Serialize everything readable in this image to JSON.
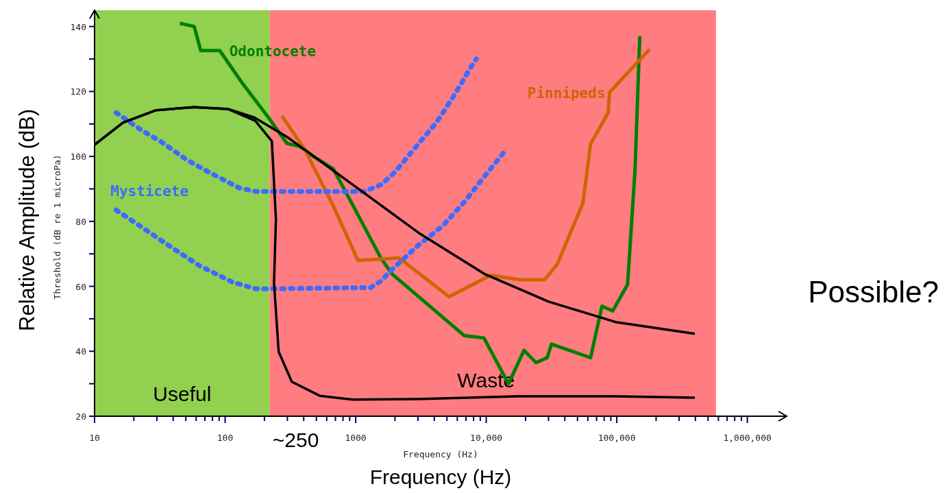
{
  "chart_data": {
    "type": "line",
    "xlabel": "Frequency (Hz)",
    "ylabel": "Threshold (dB re 1 microPa)",
    "log": "x",
    "xlim": [
      10,
      2000000
    ],
    "ylim": [
      20,
      145
    ],
    "xticks": [
      {
        "value": 10,
        "label": "10"
      },
      {
        "value": 20,
        "label": null
      },
      {
        "value": 30,
        "label": null
      },
      {
        "value": 40,
        "label": null
      },
      {
        "value": 50,
        "label": null
      },
      {
        "value": 60,
        "label": null
      },
      {
        "value": 70,
        "label": null
      },
      {
        "value": 80,
        "label": null
      },
      {
        "value": 90,
        "label": null
      },
      {
        "value": 100,
        "label": "100"
      },
      {
        "value": 200,
        "label": null
      },
      {
        "value": 300,
        "label": null
      },
      {
        "value": 400,
        "label": null
      },
      {
        "value": 500,
        "label": null
      },
      {
        "value": 600,
        "label": null
      },
      {
        "value": 700,
        "label": null
      },
      {
        "value": 800,
        "label": null
      },
      {
        "value": 900,
        "label": null
      },
      {
        "value": 1000,
        "label": "1000"
      },
      {
        "value": 2000,
        "label": null
      },
      {
        "value": 3000,
        "label": null
      },
      {
        "value": 4000,
        "label": null
      },
      {
        "value": 5000,
        "label": null
      },
      {
        "value": 6000,
        "label": null
      },
      {
        "value": 7000,
        "label": null
      },
      {
        "value": 8000,
        "label": null
      },
      {
        "value": 9000,
        "label": null
      },
      {
        "value": 10000,
        "label": "10,000"
      },
      {
        "value": 20000,
        "label": null
      },
      {
        "value": 30000,
        "label": null
      },
      {
        "value": 40000,
        "label": null
      },
      {
        "value": 50000,
        "label": null
      },
      {
        "value": 60000,
        "label": null
      },
      {
        "value": 70000,
        "label": null
      },
      {
        "value": 80000,
        "label": null
      },
      {
        "value": 90000,
        "label": null
      },
      {
        "value": 100000,
        "label": "100,000"
      },
      {
        "value": 200000,
        "label": null
      },
      {
        "value": 300000,
        "label": null
      },
      {
        "value": 400000,
        "label": null
      },
      {
        "value": 500000,
        "label": null
      },
      {
        "value": 600000,
        "label": null
      },
      {
        "value": 700000,
        "label": null
      },
      {
        "value": 800000,
        "label": null
      },
      {
        "value": 900000,
        "label": null
      },
      {
        "value": 1000000,
        "label": "1,000,000"
      }
    ],
    "yticks": [
      20,
      {
        "value": 30,
        "label": null
      },
      40,
      {
        "value": 50,
        "label": null
      },
      60,
      {
        "value": 70,
        "label": null
      },
      80,
      {
        "value": 90,
        "label": null
      },
      100,
      {
        "value": 110,
        "label": null
      },
      120,
      {
        "value": 130,
        "label": null
      },
      140
    ],
    "bands": [
      {
        "axis": "x",
        "from": 10,
        "to": 220,
        "label": "Useful",
        "color": "#92d050"
      },
      {
        "axis": "x",
        "from": 220,
        "to": 575000,
        "label": "Waste",
        "color": "#ff7c80"
      }
    ],
    "series": [
      {
        "name": "Odontocete",
        "color": "#008000",
        "line_style": "solid",
        "x": [
          45,
          58,
          65,
          91,
          133,
          210,
          298,
          376,
          475,
          673,
          950,
          1560,
          1900,
          6800,
          9600,
          14800,
          19500,
          24000,
          29300,
          31600,
          63000,
          77000,
          93000,
          121000,
          138000,
          150000
        ],
        "values": [
          141,
          140,
          132.6,
          132.6,
          123,
          112.5,
          104,
          103,
          100,
          96.2,
          85,
          68.7,
          63.8,
          44.8,
          44.1,
          30,
          40.3,
          36.5,
          38,
          42.2,
          38,
          53.9,
          52.4,
          60.6,
          96,
          137
        ]
      },
      {
        "name": "Pinnipeds",
        "color": "#cc6600",
        "line_style": "solid",
        "x": [
          272,
          410,
          670,
          1040,
          2150,
          5200,
          10800,
          18200,
          27900,
          35000,
          55000,
          63000,
          86000,
          88000,
          178000
        ],
        "values": [
          112.5,
          101.9,
          85,
          68,
          68.7,
          56.8,
          63.4,
          62,
          62,
          66.8,
          85.6,
          103.8,
          113.5,
          119.7,
          133
        ]
      },
      {
        "name": "Mysticete",
        "color": "#3d6bff",
        "line_style": "dotted",
        "x": [
          14.6,
          23,
          43,
          64,
          114,
          172,
          1300,
          1570,
          1980,
          3030,
          4650,
          6800,
          10800,
          13700
        ],
        "values": [
          83.5,
          78.2,
          70.8,
          66.3,
          61.3,
          59.2,
          59.6,
          61.7,
          65.9,
          72.7,
          78.6,
          86,
          96.2,
          101.3
        ]
      },
      {
        "color": "#3d6bff",
        "line_style": "dotted",
        "x": [
          14.6,
          23,
          31.9,
          50.6,
          71.6,
          128,
          172,
          1160,
          1570,
          1980,
          2900,
          4150,
          5600,
          7500,
          8400
        ],
        "values": [
          113.5,
          108,
          104.7,
          99,
          95.6,
          90.3,
          89.2,
          89.2,
          91.3,
          95,
          103,
          110.4,
          118.4,
          127,
          130
        ]
      },
      {
        "color": "#000000",
        "line_style": "solid",
        "x": [
          10,
          16.5,
          29.4,
          58,
          105,
          167,
          298,
          950,
          3030,
          9700,
          30000,
          98000,
          396000
        ],
        "values": [
          103.6,
          110.4,
          114.2,
          115.2,
          114.6,
          112,
          106,
          91.3,
          76.5,
          63.8,
          55.3,
          49,
          45.4
        ]
      },
      {
        "color": "#000000",
        "line_style": "solid",
        "x": [
          10,
          16.5,
          29.4,
          58,
          105,
          170,
          228,
          245,
          237,
          257,
          324,
          530,
          950,
          3000,
          17200,
          98000,
          396000
        ],
        "values": [
          103.6,
          110.4,
          114.2,
          115.2,
          114.6,
          111,
          104.7,
          80.7,
          61.1,
          39.9,
          30.6,
          26.3,
          25.1,
          25.3,
          26.1,
          26.1,
          25.7
        ]
      }
    ],
    "annotations": [
      "Relative Amplitude (dB)",
      "Frequency (Hz)",
      "~250",
      "Possible?"
    ]
  }
}
